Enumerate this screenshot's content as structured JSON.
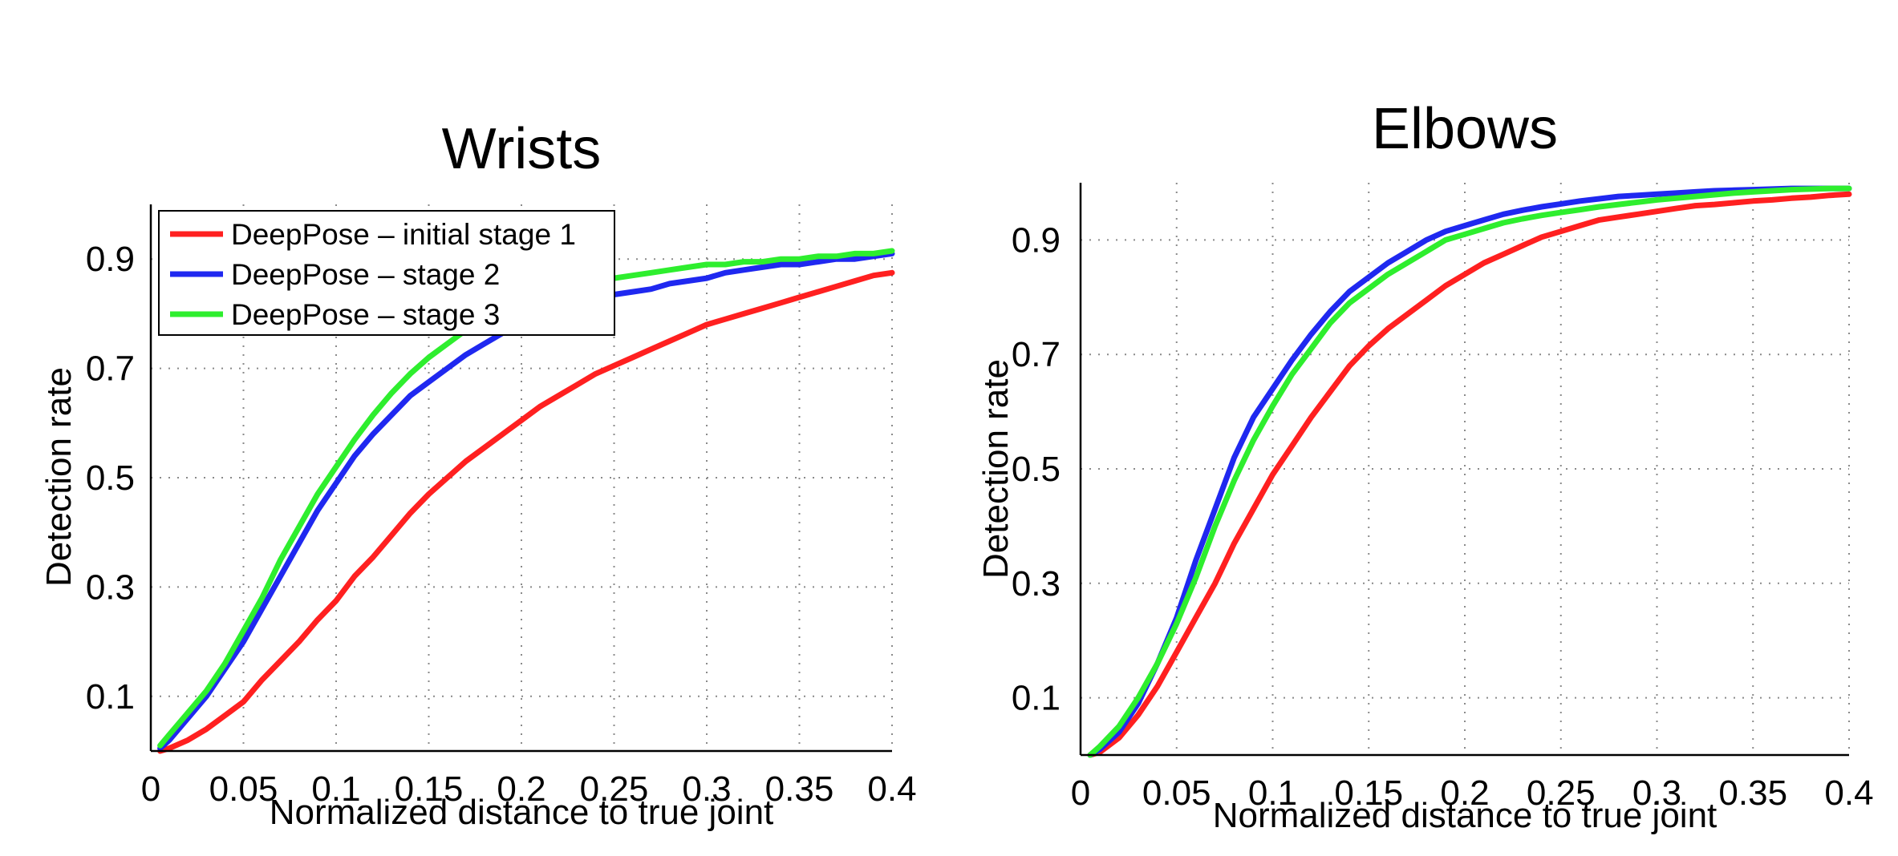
{
  "chart_data": [
    {
      "type": "line",
      "title": "Wrists",
      "xlabel": "Normalized distance to true joint",
      "ylabel": "Detection rate",
      "xlim": [
        0,
        0.4
      ],
      "ylim": [
        0,
        1.0
      ],
      "xticks": [
        "0",
        "0.05",
        "0.1",
        "0.15",
        "0.2",
        "0.25",
        "0.3",
        "0.35",
        "0.4"
      ],
      "yticks": [
        "0.1",
        "0.3",
        "0.5",
        "0.7",
        "0.9"
      ],
      "grid": true,
      "legend_position": "top-left",
      "x": [
        0.005,
        0.01,
        0.02,
        0.03,
        0.04,
        0.05,
        0.06,
        0.07,
        0.08,
        0.09,
        0.1,
        0.11,
        0.12,
        0.13,
        0.14,
        0.15,
        0.16,
        0.17,
        0.18,
        0.19,
        0.2,
        0.21,
        0.22,
        0.23,
        0.24,
        0.25,
        0.26,
        0.27,
        0.28,
        0.29,
        0.3,
        0.31,
        0.32,
        0.33,
        0.34,
        0.35,
        0.36,
        0.37,
        0.38,
        0.39,
        0.4
      ],
      "series": [
        {
          "name": "DeepPose – initial stage 1",
          "color": "#ff2020",
          "values": [
            0.0,
            0.005,
            0.02,
            0.04,
            0.065,
            0.09,
            0.13,
            0.165,
            0.2,
            0.24,
            0.275,
            0.32,
            0.355,
            0.395,
            0.435,
            0.47,
            0.5,
            0.53,
            0.555,
            0.58,
            0.605,
            0.63,
            0.65,
            0.67,
            0.69,
            0.705,
            0.72,
            0.735,
            0.75,
            0.765,
            0.78,
            0.79,
            0.8,
            0.81,
            0.82,
            0.83,
            0.84,
            0.85,
            0.86,
            0.87,
            0.875
          ]
        },
        {
          "name": "DeepPose – stage 2",
          "color": "#1f28f0",
          "values": [
            0.005,
            0.02,
            0.06,
            0.1,
            0.15,
            0.2,
            0.26,
            0.32,
            0.38,
            0.44,
            0.49,
            0.54,
            0.58,
            0.615,
            0.65,
            0.675,
            0.7,
            0.725,
            0.745,
            0.765,
            0.78,
            0.795,
            0.81,
            0.82,
            0.83,
            0.835,
            0.84,
            0.845,
            0.855,
            0.86,
            0.865,
            0.875,
            0.88,
            0.885,
            0.89,
            0.89,
            0.895,
            0.9,
            0.9,
            0.905,
            0.91
          ]
        },
        {
          "name": "DeepPose – stage 3",
          "color": "#2eee2e",
          "values": [
            0.01,
            0.03,
            0.07,
            0.11,
            0.16,
            0.22,
            0.28,
            0.35,
            0.41,
            0.47,
            0.52,
            0.57,
            0.615,
            0.655,
            0.69,
            0.72,
            0.745,
            0.77,
            0.79,
            0.81,
            0.825,
            0.835,
            0.845,
            0.855,
            0.86,
            0.865,
            0.87,
            0.875,
            0.88,
            0.885,
            0.89,
            0.89,
            0.895,
            0.895,
            0.9,
            0.9,
            0.905,
            0.905,
            0.91,
            0.91,
            0.915
          ]
        }
      ]
    },
    {
      "type": "line",
      "title": "Elbows",
      "xlabel": "Normalized distance to true joint",
      "ylabel": "Detection rate",
      "xlim": [
        0,
        0.4
      ],
      "ylim": [
        0,
        1.0
      ],
      "xticks": [
        "0",
        "0.05",
        "0.1",
        "0.15",
        "0.2",
        "0.25",
        "0.3",
        "0.35",
        "0.4"
      ],
      "yticks": [
        "0.1",
        "0.3",
        "0.5",
        "0.7",
        "0.9"
      ],
      "grid": true,
      "x": [
        0.005,
        0.01,
        0.02,
        0.03,
        0.04,
        0.05,
        0.06,
        0.07,
        0.08,
        0.09,
        0.1,
        0.11,
        0.12,
        0.13,
        0.14,
        0.15,
        0.16,
        0.17,
        0.18,
        0.19,
        0.2,
        0.21,
        0.22,
        0.23,
        0.24,
        0.25,
        0.26,
        0.27,
        0.28,
        0.29,
        0.3,
        0.31,
        0.32,
        0.33,
        0.34,
        0.35,
        0.36,
        0.37,
        0.38,
        0.39,
        0.4
      ],
      "series": [
        {
          "name": "DeepPose – initial stage 1",
          "color": "#ff2020",
          "values": [
            0.0,
            0.005,
            0.03,
            0.07,
            0.12,
            0.18,
            0.24,
            0.3,
            0.37,
            0.43,
            0.49,
            0.54,
            0.59,
            0.635,
            0.68,
            0.715,
            0.745,
            0.77,
            0.795,
            0.82,
            0.84,
            0.86,
            0.875,
            0.89,
            0.905,
            0.915,
            0.925,
            0.935,
            0.94,
            0.945,
            0.95,
            0.955,
            0.96,
            0.962,
            0.965,
            0.968,
            0.97,
            0.973,
            0.975,
            0.978,
            0.98
          ]
        },
        {
          "name": "DeepPose – stage 2",
          "color": "#1f28f0",
          "values": [
            0.0,
            0.01,
            0.04,
            0.09,
            0.16,
            0.24,
            0.34,
            0.43,
            0.52,
            0.59,
            0.64,
            0.69,
            0.735,
            0.775,
            0.81,
            0.835,
            0.86,
            0.88,
            0.9,
            0.915,
            0.925,
            0.935,
            0.945,
            0.952,
            0.958,
            0.963,
            0.968,
            0.972,
            0.976,
            0.978,
            0.98,
            0.982,
            0.984,
            0.986,
            0.987,
            0.988,
            0.989,
            0.99,
            0.99,
            0.99,
            0.99
          ]
        },
        {
          "name": "DeepPose – stage 3",
          "color": "#2eee2e",
          "values": [
            0.0,
            0.015,
            0.05,
            0.1,
            0.16,
            0.23,
            0.31,
            0.4,
            0.48,
            0.55,
            0.61,
            0.665,
            0.71,
            0.755,
            0.79,
            0.815,
            0.84,
            0.86,
            0.88,
            0.9,
            0.91,
            0.92,
            0.93,
            0.937,
            0.943,
            0.948,
            0.953,
            0.958,
            0.962,
            0.966,
            0.97,
            0.973,
            0.976,
            0.979,
            0.982,
            0.984,
            0.986,
            0.988,
            0.989,
            0.99,
            0.99
          ]
        }
      ]
    }
  ]
}
